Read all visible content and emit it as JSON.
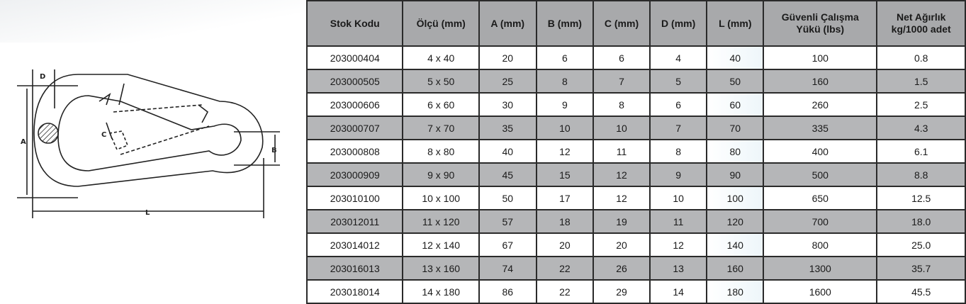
{
  "diagram": {
    "labels": {
      "a": "A",
      "b": "B",
      "c": "C",
      "d": "D",
      "l": "L"
    }
  },
  "table": {
    "headers": [
      "Stok Kodu",
      "Ölçü (mm)",
      "A (mm)",
      "B (mm)",
      "C (mm)",
      "D (mm)",
      "L (mm)",
      "Güvenli Çalışma Yükü (lbs)",
      "Net Ağırlık kg/1000 adet"
    ],
    "rows": [
      [
        "203000404",
        "4 x 40",
        "20",
        "6",
        "6",
        "4",
        "40",
        "100",
        "0.8"
      ],
      [
        "203000505",
        "5 x 50",
        "25",
        "8",
        "7",
        "5",
        "50",
        "160",
        "1.5"
      ],
      [
        "203000606",
        "6 x 60",
        "30",
        "9",
        "8",
        "6",
        "60",
        "260",
        "2.5"
      ],
      [
        "203000707",
        "7 x 70",
        "35",
        "10",
        "10",
        "7",
        "70",
        "335",
        "4.3"
      ],
      [
        "203000808",
        "8 x 80",
        "40",
        "12",
        "11",
        "8",
        "80",
        "400",
        "6.1"
      ],
      [
        "203000909",
        "9 x 90",
        "45",
        "15",
        "12",
        "9",
        "90",
        "500",
        "8.8"
      ],
      [
        "203010100",
        "10 x 100",
        "50",
        "17",
        "12",
        "10",
        "100",
        "650",
        "12.5"
      ],
      [
        "203012011",
        "11 x 120",
        "57",
        "18",
        "19",
        "11",
        "120",
        "700",
        "18.0"
      ],
      [
        "203014012",
        "12 x 140",
        "67",
        "20",
        "20",
        "12",
        "140",
        "800",
        "25.0"
      ],
      [
        "203016013",
        "13 x 160",
        "74",
        "22",
        "26",
        "13",
        "160",
        "1300",
        "35.7"
      ],
      [
        "203018014",
        "14 x 180",
        "86",
        "22",
        "29",
        "14",
        "180",
        "1600",
        "45.5"
      ]
    ]
  }
}
